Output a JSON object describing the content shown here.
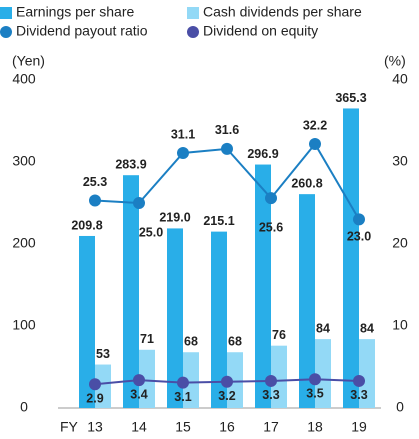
{
  "chart_data": {
    "type": "bar",
    "categories": [
      "13",
      "14",
      "15",
      "16",
      "17",
      "18",
      "19"
    ],
    "x_label": "FY",
    "y_label": "(Yen)",
    "y2_label": "(%)",
    "ylim": [
      0,
      400
    ],
    "yticks": [
      0,
      100,
      200,
      300,
      400
    ],
    "y2lim": [
      0,
      40
    ],
    "y2ticks": [
      0,
      10,
      20,
      30,
      40
    ],
    "series": [
      {
        "name": "Earnings per share",
        "type": "bar",
        "color": "#29aee8",
        "values": [
          209.8,
          283.9,
          219.0,
          215.1,
          296.9,
          260.8,
          365.3
        ],
        "value_labels": [
          "209.8",
          "283.9",
          "219.0",
          "215.1",
          "296.9",
          "260.8",
          "365.3"
        ]
      },
      {
        "name": "Cash dividends per share",
        "type": "bar",
        "color": "#93d9f6",
        "values": [
          53,
          71,
          68,
          68,
          76,
          84,
          84
        ]
      },
      {
        "name": "Dividend payout ratio",
        "type": "line",
        "axis": "y2",
        "color": "#1b7fc3",
        "values": [
          25.3,
          25.0,
          31.1,
          31.6,
          25.6,
          32.2,
          23.0
        ],
        "value_labels": [
          "25.3",
          "25.0",
          "31.1",
          "31.6",
          "25.6",
          "32.2",
          "23.0"
        ]
      },
      {
        "name": "Dividend on equity",
        "type": "line",
        "axis": "y2",
        "color": "#4a4ea6",
        "values": [
          2.9,
          3.4,
          3.1,
          3.2,
          3.3,
          3.5,
          3.3
        ]
      }
    ]
  }
}
